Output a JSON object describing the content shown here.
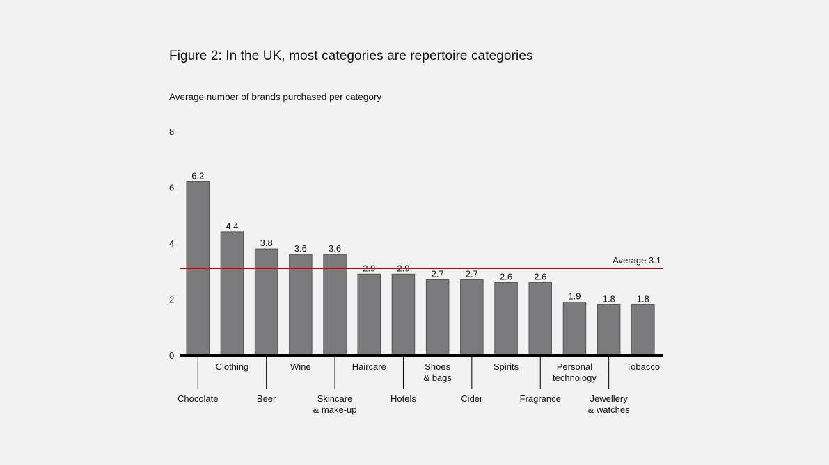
{
  "chart_data": {
    "type": "bar",
    "title": "Figure 2: In the UK, most categories are repertoire categories",
    "ylabel": "Average number of brands purchased per category",
    "xlabel": "",
    "ylim": [
      0,
      8
    ],
    "yticks": [
      0,
      2,
      4,
      6,
      8
    ],
    "categories": [
      "Chocolate",
      "Clothing",
      "Beer",
      "Wine",
      "Skincare\n& make-up",
      "Haircare",
      "Hotels",
      "Shoes\n& bags",
      "Cider",
      "Spirits",
      "Fragrance",
      "Personal\ntechnology",
      "Jewellery\n& watches",
      "Tobacco"
    ],
    "values": [
      6.2,
      4.4,
      3.8,
      3.6,
      3.6,
      2.9,
      2.9,
      2.7,
      2.7,
      2.6,
      2.6,
      1.9,
      1.8,
      1.8
    ],
    "value_labels": [
      "6.2",
      "4.4",
      "3.8",
      "3.6",
      "3.6",
      "2.9",
      "2.9",
      "2.7",
      "2.7",
      "2.6",
      "2.6",
      "1.9",
      "1.8",
      "1.8"
    ],
    "average": {
      "label": "Average 3.1",
      "value": 3.1,
      "color": "#cc0000"
    },
    "bar_color": "#7b7b7d",
    "bar_edge_color": "#555555",
    "axis_color": "#000000",
    "grid": false
  }
}
